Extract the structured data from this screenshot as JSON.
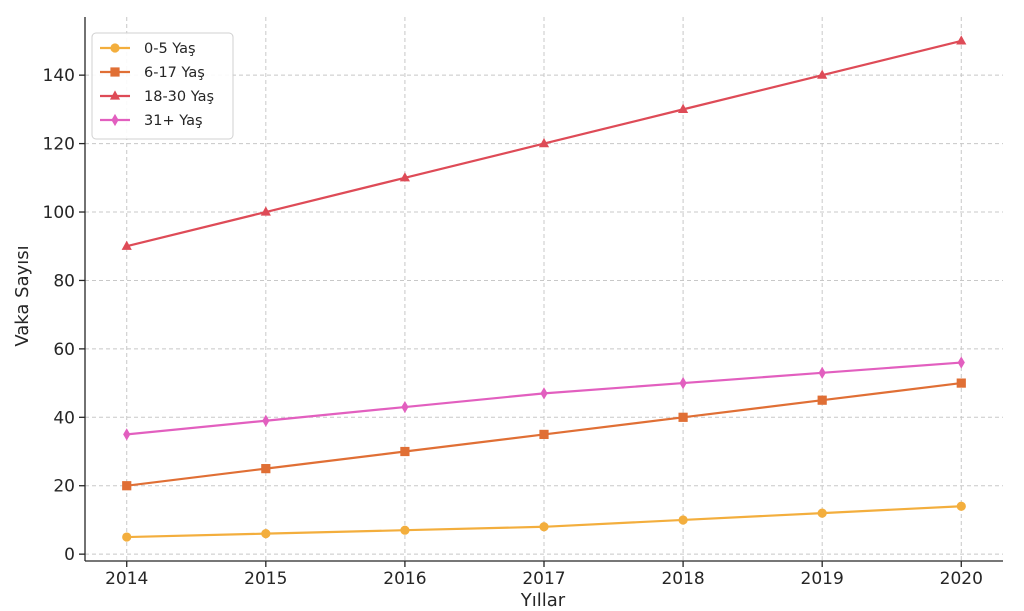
{
  "chart_data": {
    "type": "line",
    "title": "",
    "xlabel": "Yıllar",
    "ylabel": "Vaka Sayısı",
    "categories": [
      2014,
      2015,
      2016,
      2017,
      2018,
      2019,
      2020
    ],
    "x_tick_labels": [
      "2014",
      "2015",
      "2016",
      "2017",
      "2018",
      "2019",
      "2020"
    ],
    "yticks": [
      0,
      20,
      40,
      60,
      80,
      100,
      120,
      140
    ],
    "y_tick_labels": [
      "0",
      "20",
      "40",
      "60",
      "80",
      "100",
      "120",
      "140"
    ],
    "xlim": [
      2013.7,
      2020.3
    ],
    "ylim": [
      -2,
      157
    ],
    "grid": true,
    "legend_position": "top-left",
    "series": [
      {
        "name": "0-5 Yaş",
        "values": [
          5,
          6,
          7,
          8,
          10,
          12,
          14
        ],
        "color": "#f3ae3d",
        "marker": "circle"
      },
      {
        "name": "6-17 Yaş",
        "values": [
          20,
          25,
          30,
          35,
          40,
          45,
          50
        ],
        "color": "#e06f35",
        "marker": "square"
      },
      {
        "name": "18-30 Yaş",
        "values": [
          90,
          100,
          110,
          120,
          130,
          140,
          150
        ],
        "color": "#de4b57",
        "marker": "triangle"
      },
      {
        "name": "31+ Yaş",
        "values": [
          35,
          39,
          43,
          47,
          50,
          53,
          56
        ],
        "color": "#e25fbf",
        "marker": "diamond"
      }
    ]
  }
}
